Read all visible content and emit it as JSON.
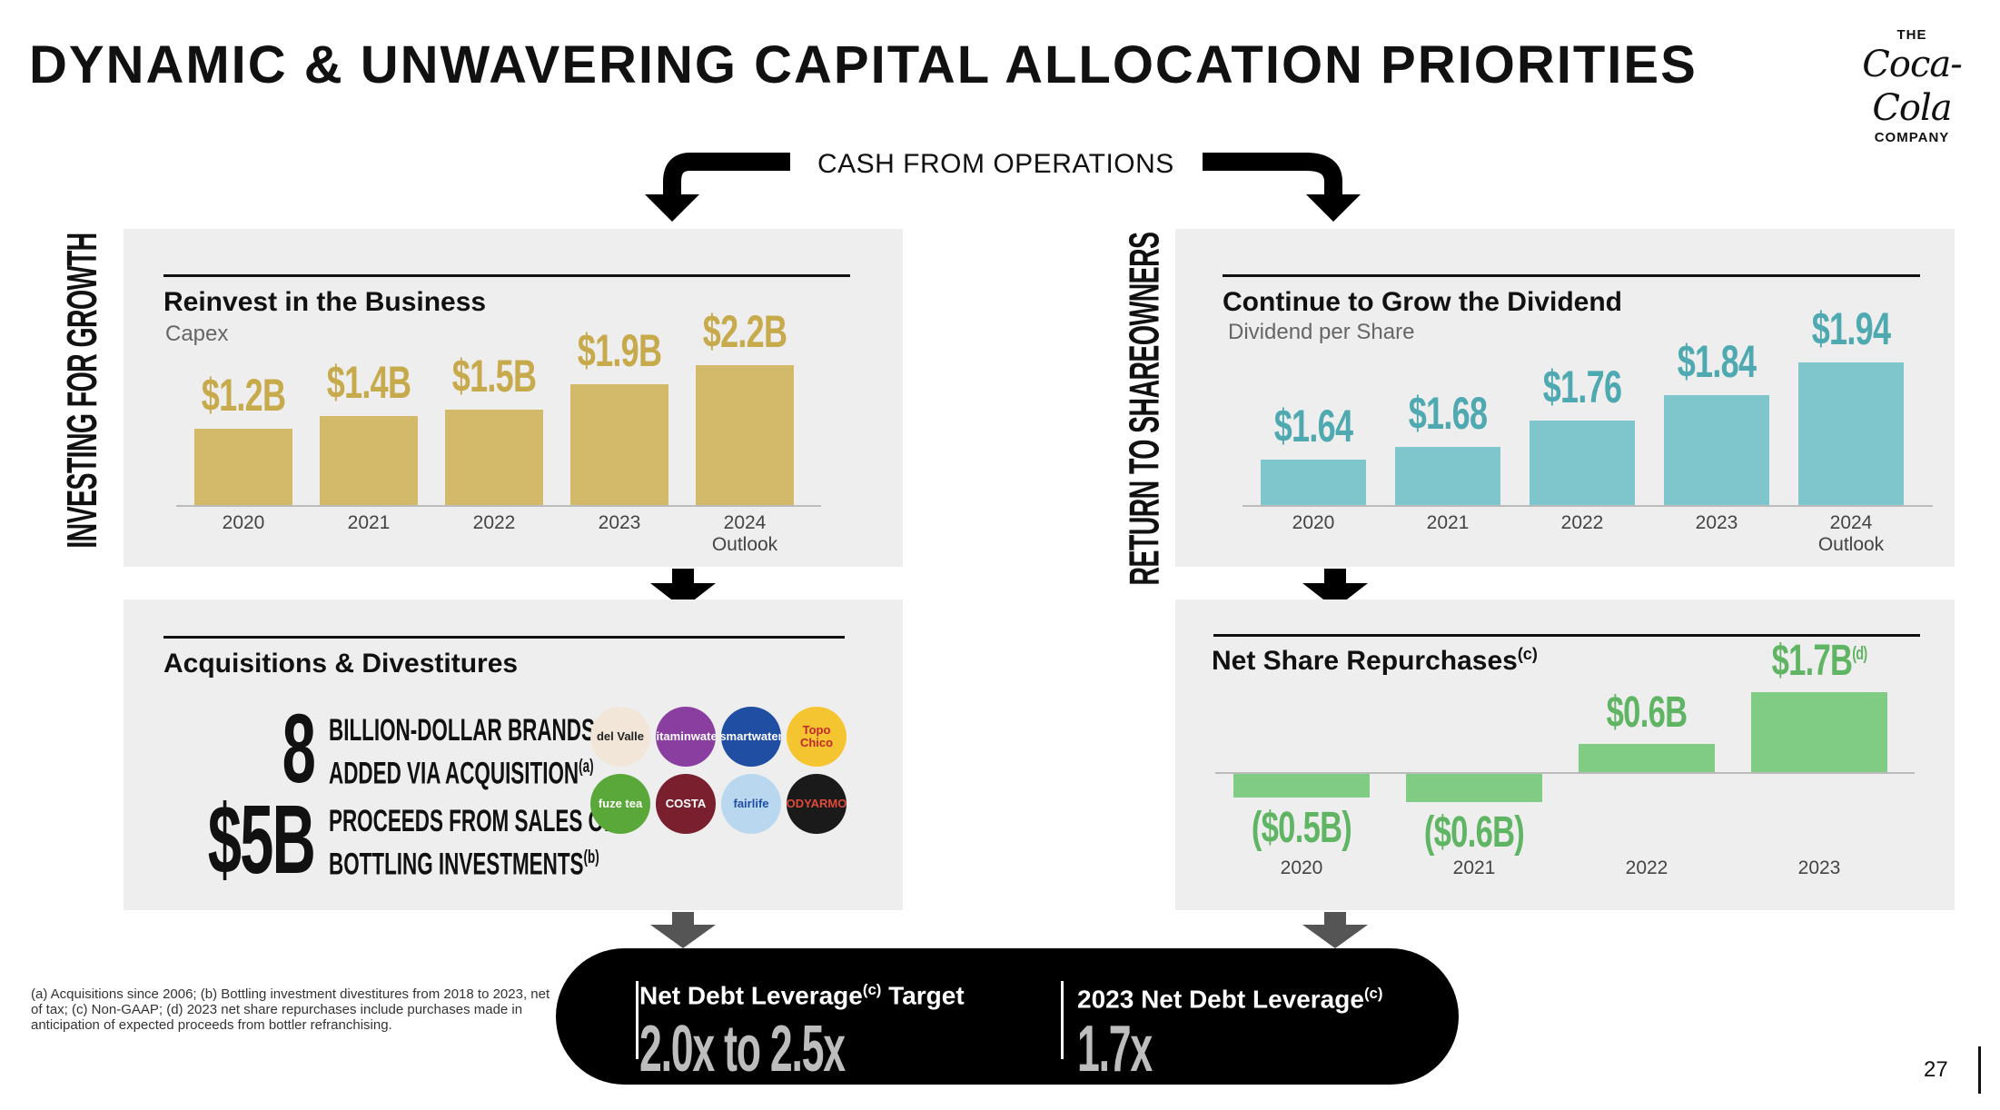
{
  "title": "DYNAMIC & UNWAVERING CAPITAL ALLOCATION PRIORITIES",
  "logo": {
    "top": "THE",
    "script": "Coca-Cola",
    "bottom": "COMPANY"
  },
  "cash_from_operations": "CASH FROM OPERATIONS",
  "left_section_label": "INVESTING FOR GROWTH",
  "right_section_label": "RETURN TO SHAREOWNERS",
  "colors": {
    "capex": "#d3b96a",
    "dividend": "#7fc6cc",
    "repurchase": "#80cc84",
    "panel": "#eeeeee"
  },
  "capex": {
    "title": "Reinvest in the Business",
    "subtitle": "Capex",
    "labels": [
      "$1.2B",
      "$1.4B",
      "$1.5B",
      "$1.9B",
      "$2.2B"
    ],
    "categories": [
      "2020",
      "2021",
      "2022",
      "2023",
      "2024"
    ],
    "category_sub": [
      "",
      "",
      "",
      "",
      "Outlook"
    ]
  },
  "acquisitions": {
    "title": "Acquisitions & Divestitures",
    "stat1_number": "8",
    "stat1_line1": "BILLION-DOLLAR BRANDS",
    "stat1_line2": "ADDED VIA ACQUISITION",
    "stat1_note": "(a)",
    "stat2_number": "$5B",
    "stat2_line1": "PROCEEDS FROM SALES OF",
    "stat2_line2": "BOTTLING INVESTMENTS",
    "stat2_note": "(b)",
    "brands": [
      {
        "name": "del Valle",
        "color": "#f2e6d8",
        "text": "#222"
      },
      {
        "name": "vitaminwater",
        "color": "#8a3ea0",
        "text": "#fff"
      },
      {
        "name": "smartwater",
        "color": "#1f4ea3",
        "text": "#fff"
      },
      {
        "name": "Topo Chico",
        "color": "#f5c531",
        "text": "#c2272d"
      },
      {
        "name": "fuze tea",
        "color": "#5aa83a",
        "text": "#fff"
      },
      {
        "name": "COSTA",
        "color": "#7a1f2e",
        "text": "#fff"
      },
      {
        "name": "fairlife",
        "color": "#b9d8f0",
        "text": "#1f4ea3"
      },
      {
        "name": "BODYARMOR",
        "color": "#1a1a1a",
        "text": "#e04a3a"
      }
    ]
  },
  "dividend": {
    "title": "Continue to Grow the Dividend",
    "subtitle": "Dividend per Share",
    "labels": [
      "$1.64",
      "$1.68",
      "$1.76",
      "$1.84",
      "$1.94"
    ],
    "categories": [
      "2020",
      "2021",
      "2022",
      "2023",
      "2024"
    ],
    "category_sub": [
      "",
      "",
      "",
      "",
      "Outlook"
    ]
  },
  "repurchases": {
    "title": "Net Share Repurchases",
    "title_note": "(c)",
    "labels": [
      "($0.5B)",
      "($0.6B)",
      "$0.6B",
      "$1.7B"
    ],
    "last_label_note": "(d)",
    "categories": [
      "2020",
      "2021",
      "2022",
      "2023"
    ]
  },
  "chart_data": [
    {
      "type": "bar",
      "title": "Reinvest in the Business",
      "subtitle": "Capex",
      "categories": [
        "2020",
        "2021",
        "2022",
        "2023",
        "2024 Outlook"
      ],
      "values": [
        1.2,
        1.4,
        1.5,
        1.9,
        2.2
      ],
      "ylim": [
        0,
        2.4
      ]
    },
    {
      "type": "bar",
      "title": "Continue to Grow the Dividend",
      "subtitle": "Dividend per Share",
      "categories": [
        "2020",
        "2021",
        "2022",
        "2023",
        "2024 Outlook"
      ],
      "values": [
        1.64,
        1.68,
        1.76,
        1.84,
        1.94
      ],
      "ylim": [
        1.5,
        2.0
      ]
    },
    {
      "type": "bar",
      "title": "Net Share Repurchases",
      "categories": [
        "2020",
        "2021",
        "2022",
        "2023"
      ],
      "values": [
        -0.5,
        -0.6,
        0.6,
        1.7
      ],
      "ylim": [
        -0.6,
        1.7
      ]
    }
  ],
  "leverage": {
    "target_label": "Net Debt Leverage",
    "target_note": "(c)",
    "target_suffix": " Target",
    "target_value": "2.0x to 2.5x",
    "actual_label": "2023 Net Debt Leverage",
    "actual_note": "(c)",
    "actual_value": "1.7x"
  },
  "footnote": "(a) Acquisitions since 2006; (b) Bottling investment divestitures from 2018 to 2023, net of tax; (c) Non-GAAP; (d) 2023 net share repurchases include purchases made in anticipation of expected proceeds from bottler refranchising.",
  "page_number": "27"
}
